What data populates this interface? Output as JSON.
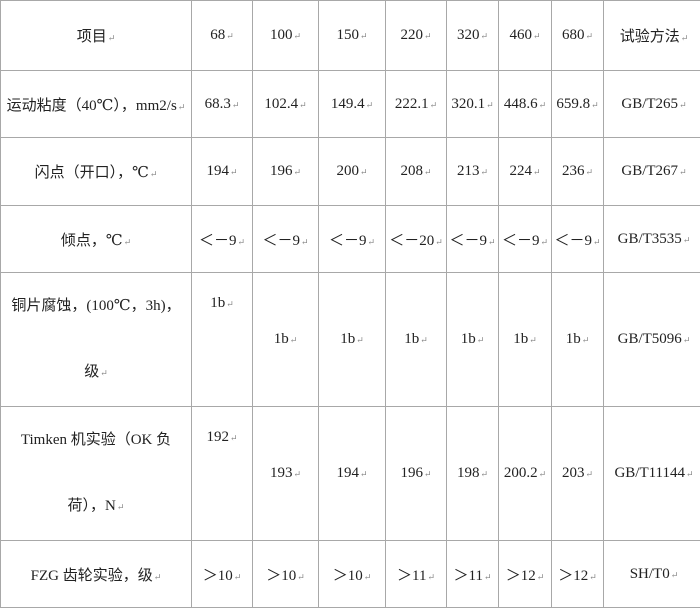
{
  "header": [
    "项目",
    "68",
    "100",
    "150",
    "220",
    "320",
    "460",
    "680",
    "试验方法"
  ],
  "rows": [
    {
      "label": "运动粘度（40℃），mm2/s",
      "values": [
        "68.3",
        "102.4",
        "149.4",
        "222.1",
        "320.1",
        "448.6",
        "659.8"
      ],
      "method": "GB/T265"
    },
    {
      "label": "闪点（开口），℃",
      "values": [
        "194",
        "196",
        "200",
        "208",
        "213",
        "224",
        "236"
      ],
      "method": "GB/T267"
    },
    {
      "label": "倾点，℃",
      "values": [
        "＜－9",
        "＜－9",
        "＜－9",
        "＜－20",
        "＜－9",
        "＜－9",
        "＜－9"
      ],
      "method": "GB/T3535"
    },
    {
      "label": "铜片腐蚀，(100℃，3h)，级",
      "values": [
        "1b",
        "1b",
        "1b",
        "1b",
        "1b",
        "1b",
        "1b"
      ],
      "method": "GB/T5096"
    },
    {
      "label": "Timken 机实验（OK 负荷），N",
      "values": [
        "192",
        "193",
        "194",
        "196",
        "198",
        "200.2",
        "203"
      ],
      "method": "GB/T11144"
    },
    {
      "label": "FZG 齿轮实验，级",
      "values": [
        "＞10",
        "＞10",
        "＞10",
        "＞11",
        "＞11",
        "＞12",
        "＞12"
      ],
      "method": "SH/T0"
    }
  ]
}
